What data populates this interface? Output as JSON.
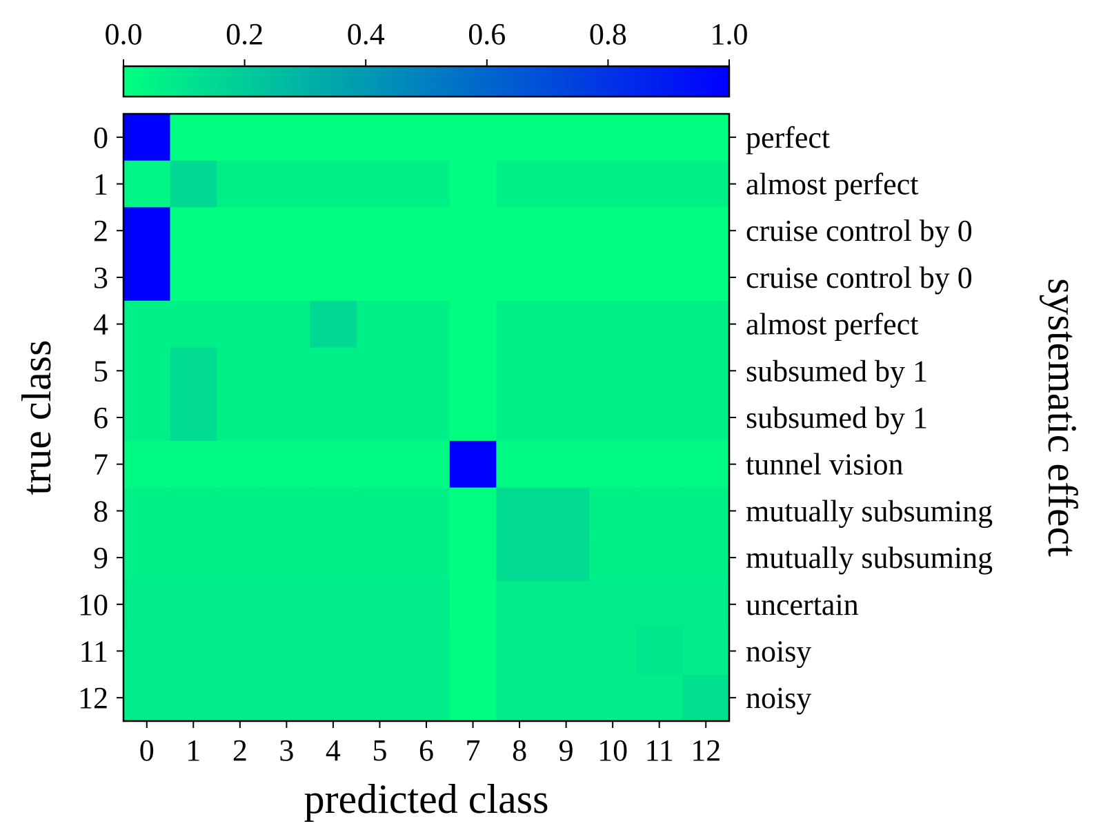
{
  "chart_data": {
    "type": "heatmap",
    "xlabel": "predicted class",
    "ylabel": "true class",
    "y2label": "systematic effect",
    "x_categories": [
      "0",
      "1",
      "2",
      "3",
      "4",
      "5",
      "6",
      "7",
      "8",
      "9",
      "10",
      "11",
      "12"
    ],
    "y_categories": [
      "0",
      "1",
      "2",
      "3",
      "4",
      "5",
      "6",
      "7",
      "8",
      "9",
      "10",
      "11",
      "12"
    ],
    "row_effects": [
      "perfect",
      "almost perfect",
      "cruise control by 0",
      "cruise control by 0",
      "almost perfect",
      "subsumed by 1",
      "subsumed by 1",
      "tunnel vision",
      "mutually subsuming",
      "mutually subsuming",
      "uncertain",
      "noisy",
      "noisy"
    ],
    "values": [
      [
        1.0,
        0,
        0,
        0,
        0,
        0,
        0,
        0,
        0,
        0,
        0,
        0,
        0
      ],
      [
        0.04,
        0.15,
        0.06,
        0.06,
        0.06,
        0.06,
        0.06,
        0,
        0.06,
        0.06,
        0.06,
        0.06,
        0.06
      ],
      [
        1.0,
        0,
        0,
        0,
        0,
        0,
        0,
        0,
        0,
        0,
        0,
        0,
        0
      ],
      [
        1.0,
        0,
        0,
        0,
        0,
        0,
        0,
        0,
        0,
        0,
        0,
        0,
        0
      ],
      [
        0.06,
        0.06,
        0.06,
        0.06,
        0.15,
        0.06,
        0.06,
        0,
        0.06,
        0.06,
        0.06,
        0.06,
        0.06
      ],
      [
        0.06,
        0.14,
        0.06,
        0.06,
        0.06,
        0.06,
        0.06,
        0,
        0.06,
        0.06,
        0.06,
        0.06,
        0.06
      ],
      [
        0.06,
        0.14,
        0.06,
        0.06,
        0.06,
        0.06,
        0.06,
        0,
        0.06,
        0.06,
        0.06,
        0.06,
        0.06
      ],
      [
        0.02,
        0.02,
        0.02,
        0.02,
        0.02,
        0.02,
        0.02,
        1.0,
        0.02,
        0.02,
        0.02,
        0.02,
        0.02
      ],
      [
        0.06,
        0.06,
        0.06,
        0.06,
        0.06,
        0.06,
        0.06,
        0,
        0.14,
        0.14,
        0.06,
        0.06,
        0.06
      ],
      [
        0.06,
        0.06,
        0.06,
        0.06,
        0.06,
        0.06,
        0.06,
        0,
        0.14,
        0.14,
        0.06,
        0.06,
        0.06
      ],
      [
        0.075,
        0.075,
        0.075,
        0.075,
        0.075,
        0.075,
        0.075,
        0,
        0.075,
        0.075,
        0.075,
        0.075,
        0.075
      ],
      [
        0.07,
        0.07,
        0.07,
        0.07,
        0.07,
        0.07,
        0.07,
        0,
        0.07,
        0.07,
        0.07,
        0.1,
        0.07
      ],
      [
        0.07,
        0.07,
        0.07,
        0.07,
        0.07,
        0.07,
        0.07,
        0,
        0.07,
        0.07,
        0.07,
        0.07,
        0.12
      ]
    ],
    "colorbar": {
      "range": [
        0.0,
        1.0
      ],
      "ticks": [
        "0.0",
        "0.2",
        "0.4",
        "0.6",
        "0.8",
        "1.0"
      ],
      "placement": "top",
      "colormap": "winter_r",
      "color_low": "#00ff80",
      "color_high": "#0000ff"
    }
  }
}
